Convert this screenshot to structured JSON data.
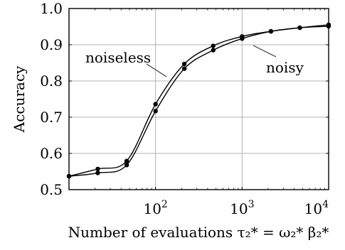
{
  "chart_data": {
    "type": "line",
    "x_scale": "log",
    "xlim": [
      10,
      10000
    ],
    "ylim": [
      0.5,
      1.0
    ],
    "grid": true,
    "ylabel": "Accuracy",
    "xlabel": "Number of evaluations τ₂* = ω₂* β₂*",
    "x_ticks": [
      {
        "value": 100,
        "base": "10",
        "exp": "2"
      },
      {
        "value": 1000,
        "base": "10",
        "exp": "3"
      },
      {
        "value": 10000,
        "base": "10",
        "exp": "4"
      }
    ],
    "y_ticks": [
      {
        "value": 0.5,
        "label": "0.5"
      },
      {
        "value": 0.6,
        "label": "0.6"
      },
      {
        "value": 0.7,
        "label": "0.7"
      },
      {
        "value": 0.8,
        "label": "0.8"
      },
      {
        "value": 0.9,
        "label": "0.9"
      },
      {
        "value": 1.0,
        "label": "1.0"
      }
    ],
    "series": [
      {
        "name": "noiseless",
        "x": [
          10,
          21.5,
          46.4,
          100,
          215,
          464,
          1000,
          2154,
          4642,
          10000
        ],
        "values": [
          0.537,
          0.557,
          0.579,
          0.736,
          0.847,
          0.897,
          0.923,
          0.937,
          0.947,
          0.955
        ]
      },
      {
        "name": "noisy",
        "x": [
          10,
          21.5,
          46.4,
          100,
          215,
          464,
          1000,
          2154,
          4642,
          10000
        ],
        "values": [
          0.537,
          0.546,
          0.568,
          0.717,
          0.834,
          0.885,
          0.917,
          0.937,
          0.947,
          0.951
        ]
      }
    ]
  }
}
